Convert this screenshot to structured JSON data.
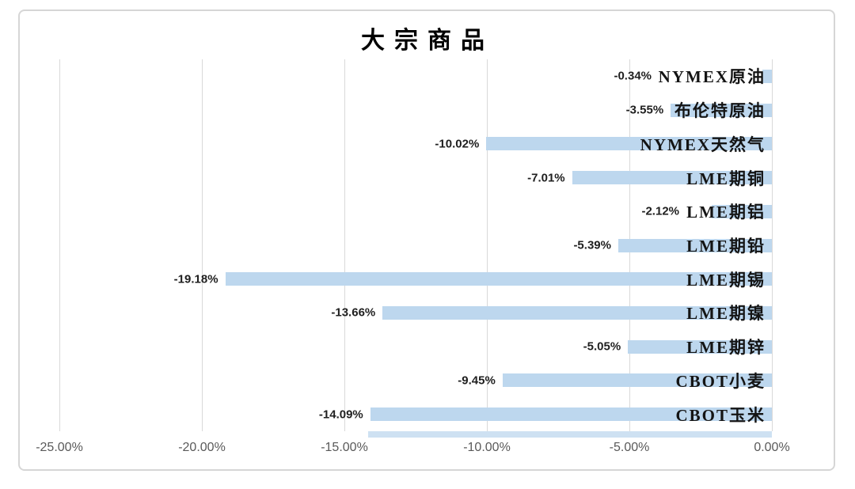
{
  "page": {
    "background": "#FFFFFF"
  },
  "colors": {
    "bar": "#BDD7EE",
    "gridline": "#D9D9D9",
    "frame_border": "#D6D6D6",
    "axis_text": "#595959",
    "value_text": "#1F1F1F",
    "category_text": "#141414",
    "title_text": "#000000"
  },
  "chart_data": {
    "type": "bar",
    "orientation": "horizontal",
    "title": "大宗商品",
    "categories": [
      "NYMEX原油",
      "布伦特原油",
      "NYMEX天然气",
      "LME期铜",
      "LME期铝",
      "LME期铅",
      "LME期锡",
      "LME期镍",
      "LME期锌",
      "CBOT小麦",
      "CBOT玉米"
    ],
    "values": [
      -0.34,
      -3.55,
      -10.02,
      -7.01,
      -2.12,
      -5.39,
      -19.18,
      -13.66,
      -5.05,
      -9.45,
      -14.09
    ],
    "value_labels": [
      "-0.34%",
      "-3.55%",
      "-10.02%",
      "-7.01%",
      "-2.12%",
      "-5.39%",
      "-19.18%",
      "-13.66%",
      "-5.05%",
      "-9.45%",
      "-14.09%"
    ],
    "x_ticks": [
      "-25.00%",
      "-20.00%",
      "-15.00%",
      "-10.00%",
      "-5.00%",
      "0.00%"
    ],
    "x_tick_values": [
      -25,
      -20,
      -15,
      -10,
      -5,
      0
    ],
    "xlim": [
      -25,
      0
    ],
    "grid": true,
    "legend": false,
    "value_label_position": "outside-end",
    "category_label_position": "inside-right-of-zero"
  }
}
